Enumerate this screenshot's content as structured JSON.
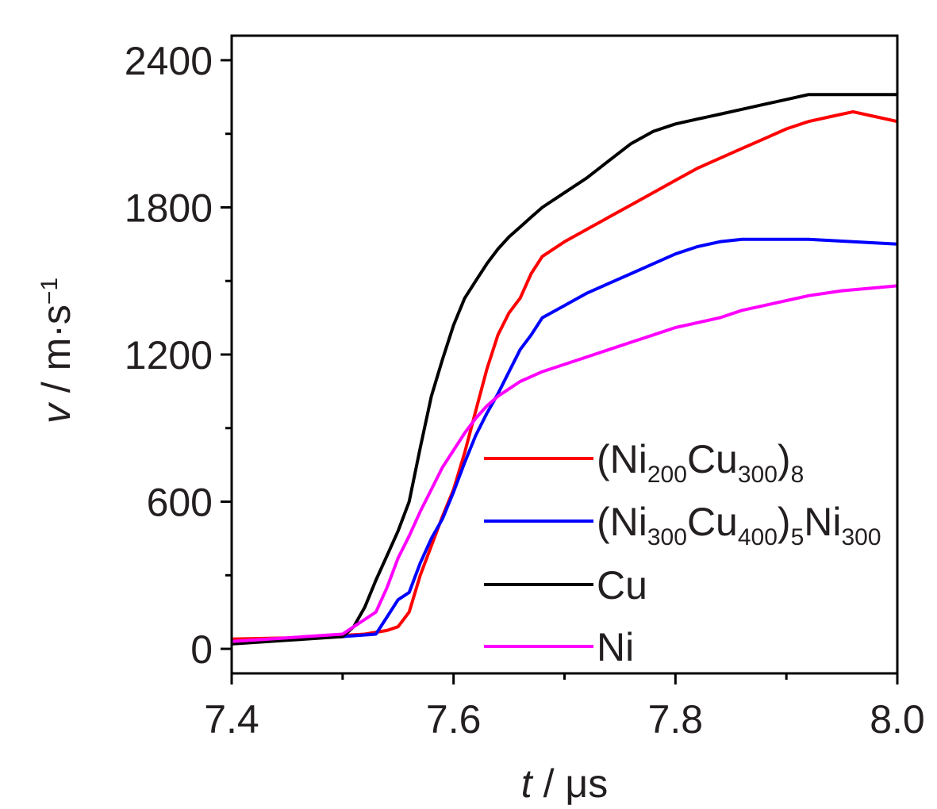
{
  "chart_data": {
    "type": "line",
    "xlabel": {
      "var": "t",
      "sep": " / ",
      "unit": "μs"
    },
    "ylabel": {
      "var": "v",
      "sep": " / ",
      "unit": "m·s",
      "unit_sup": "−1"
    },
    "xlim": [
      7.4,
      8.0
    ],
    "ylim": [
      -100,
      2500
    ],
    "xticks": [
      7.4,
      7.6,
      7.8,
      8.0
    ],
    "xtick_labels": [
      "7.4",
      "7.6",
      "7.8",
      "8.0"
    ],
    "yticks": [
      0,
      600,
      1200,
      1800,
      2400
    ],
    "ytick_labels": [
      "0",
      "600",
      "1200",
      "1800",
      "2400"
    ],
    "grid": false,
    "legend_position": "lower-right",
    "series": [
      {
        "name": "(Ni200Cu300)8",
        "name_parts": [
          [
            "(Ni",
            "n"
          ],
          [
            "200",
            "s"
          ],
          [
            "Cu",
            "n"
          ],
          [
            "300",
            "s"
          ],
          [
            ")",
            "n"
          ],
          [
            "8",
            "s"
          ]
        ],
        "color": "#ff0000",
        "x": [
          7.4,
          7.45,
          7.5,
          7.52,
          7.54,
          7.55,
          7.56,
          7.57,
          7.58,
          7.59,
          7.6,
          7.61,
          7.62,
          7.63,
          7.64,
          7.65,
          7.66,
          7.67,
          7.68,
          7.7,
          7.72,
          7.74,
          7.76,
          7.78,
          7.8,
          7.82,
          7.84,
          7.86,
          7.88,
          7.9,
          7.92,
          7.94,
          7.96,
          7.98,
          8.0
        ],
        "y": [
          40,
          45,
          55,
          60,
          75,
          90,
          150,
          300,
          420,
          540,
          650,
          800,
          970,
          1140,
          1280,
          1370,
          1430,
          1530,
          1600,
          1660,
          1710,
          1760,
          1810,
          1860,
          1910,
          1960,
          2000,
          2040,
          2080,
          2120,
          2150,
          2170,
          2190,
          2170,
          2150
        ]
      },
      {
        "name": "(Ni300Cu400)5Ni300",
        "name_parts": [
          [
            "(Ni",
            "n"
          ],
          [
            "300",
            "s"
          ],
          [
            "Cu",
            "n"
          ],
          [
            "400",
            "s"
          ],
          [
            ")",
            "n"
          ],
          [
            "5",
            "s"
          ],
          [
            "Ni",
            "n"
          ],
          [
            "300",
            "s"
          ]
        ],
        "color": "#0000ff",
        "x": [
          7.4,
          7.45,
          7.5,
          7.53,
          7.54,
          7.55,
          7.56,
          7.57,
          7.58,
          7.59,
          7.6,
          7.61,
          7.62,
          7.63,
          7.64,
          7.65,
          7.66,
          7.67,
          7.68,
          7.7,
          7.72,
          7.74,
          7.76,
          7.78,
          7.8,
          7.82,
          7.84,
          7.86,
          7.88,
          7.9,
          7.92,
          7.94,
          7.96,
          7.98,
          8.0
        ],
        "y": [
          30,
          40,
          50,
          60,
          130,
          200,
          230,
          350,
          450,
          530,
          640,
          760,
          870,
          960,
          1040,
          1130,
          1220,
          1280,
          1350,
          1400,
          1450,
          1490,
          1530,
          1570,
          1610,
          1640,
          1660,
          1670,
          1670,
          1670,
          1670,
          1665,
          1660,
          1655,
          1650
        ]
      },
      {
        "name": "Cu",
        "name_parts": [
          [
            "Cu",
            "n"
          ]
        ],
        "color": "#000000",
        "x": [
          7.4,
          7.45,
          7.5,
          7.51,
          7.52,
          7.53,
          7.54,
          7.55,
          7.56,
          7.57,
          7.58,
          7.59,
          7.6,
          7.61,
          7.62,
          7.63,
          7.64,
          7.65,
          7.66,
          7.67,
          7.68,
          7.7,
          7.72,
          7.74,
          7.76,
          7.78,
          7.8,
          7.82,
          7.84,
          7.86,
          7.88,
          7.9,
          7.92,
          7.95,
          8.0
        ],
        "y": [
          20,
          35,
          50,
          90,
          170,
          280,
          380,
          480,
          600,
          820,
          1030,
          1180,
          1320,
          1430,
          1500,
          1570,
          1630,
          1680,
          1720,
          1760,
          1800,
          1860,
          1920,
          1990,
          2060,
          2110,
          2140,
          2160,
          2180,
          2200,
          2220,
          2240,
          2260,
          2260,
          2260
        ]
      },
      {
        "name": "Ni",
        "name_parts": [
          [
            "Ni",
            "n"
          ]
        ],
        "color": "#ff00ff",
        "x": [
          7.4,
          7.45,
          7.5,
          7.51,
          7.52,
          7.53,
          7.54,
          7.55,
          7.56,
          7.57,
          7.58,
          7.59,
          7.6,
          7.61,
          7.62,
          7.63,
          7.64,
          7.65,
          7.66,
          7.67,
          7.68,
          7.7,
          7.72,
          7.74,
          7.76,
          7.78,
          7.8,
          7.82,
          7.84,
          7.86,
          7.88,
          7.9,
          7.92,
          7.95,
          8.0
        ],
        "y": [
          30,
          45,
          60,
          90,
          120,
          150,
          250,
          370,
          460,
          560,
          650,
          740,
          810,
          880,
          940,
          990,
          1030,
          1060,
          1090,
          1110,
          1130,
          1160,
          1190,
          1220,
          1250,
          1280,
          1310,
          1330,
          1350,
          1380,
          1400,
          1420,
          1440,
          1460,
          1480
        ]
      }
    ]
  }
}
